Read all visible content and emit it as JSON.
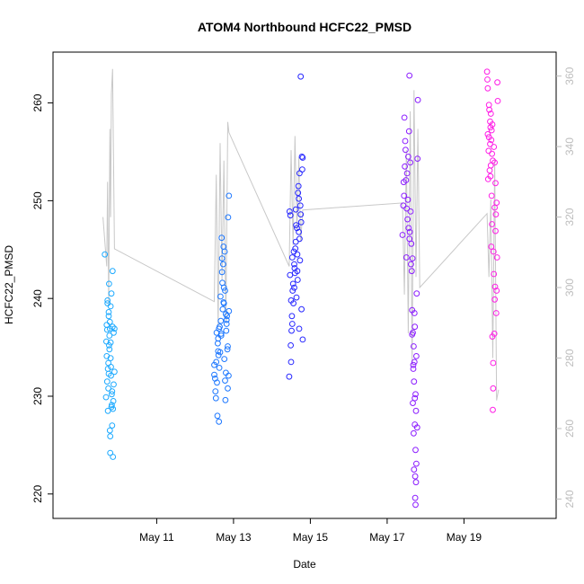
{
  "chart_data": {
    "type": "scatter",
    "title": "ATOM4 Northbound HCFC22_PMSD",
    "xlabel": "Date",
    "ylabel": "HCFC22_PMSD",
    "x_ticks": [
      "May 11",
      "May 13",
      "May 15",
      "May 17",
      "May 19"
    ],
    "x_tick_days": [
      11,
      13,
      15,
      17,
      19
    ],
    "xlim_days": [
      8.3,
      21.4
    ],
    "ylim": [
      217.5,
      265.2
    ],
    "y_ticks": [
      "220",
      "230",
      "240",
      "250",
      "260"
    ],
    "y_tick_values": [
      220,
      230,
      240,
      250,
      260
    ],
    "y2_ticks": [
      "240",
      "260",
      "280",
      "300",
      "320",
      "340",
      "360"
    ],
    "y2_tick_values": [
      240,
      260,
      280,
      300,
      320,
      340,
      360
    ],
    "y2lim": [
      234.5,
      366.8
    ],
    "grid": false,
    "marker": "open-circle",
    "colors": {
      "flight_1": "#1eaaff",
      "flight_2": "#1e78ff",
      "flight_3": "#2828ff",
      "flight_4": "#8c1eff",
      "flight_5": "#ff1ee6",
      "line": "#c8c8c8",
      "right_axis": "#bdbdbd"
    },
    "series": [
      {
        "color_key": "flight_1",
        "x": [
          9.65,
          9.72,
          9.75,
          9.78,
          9.85,
          9.88,
          9.7,
          9.82,
          9.8,
          9.76,
          9.74,
          9.9,
          9.68,
          9.73,
          9.84,
          9.79,
          9.86,
          9.71,
          9.77,
          9.83,
          9.69,
          9.81,
          9.87,
          9.75,
          9.78,
          9.72,
          9.8,
          9.85,
          9.74,
          9.82,
          9.77,
          9.7,
          9.88,
          9.73,
          9.79,
          9.83,
          9.76,
          9.81,
          9.84,
          9.71,
          9.9,
          9.8,
          9.75,
          9.86,
          9.78
        ],
        "y": [
          244.5,
          239.8,
          238.2,
          236.9,
          242.8,
          236.5,
          237.3,
          240.5,
          239.2,
          235.2,
          233.4,
          232.5,
          229.9,
          228.5,
          227,
          224.2,
          223.8,
          231.5,
          234.8,
          230.2,
          235.6,
          232.1,
          229.5,
          238.6,
          226.5,
          239.5,
          233.9,
          237.1,
          230.8,
          228.9,
          236.2,
          234.1,
          231.2,
          232.8,
          225.9,
          229.1,
          241.5,
          233,
          230.5,
          236.8,
          236.9,
          235.5,
          232.3,
          228.7,
          237.6
        ]
      },
      {
        "color_key": "flight_2",
        "x": [
          12.5,
          12.55,
          12.58,
          12.62,
          12.65,
          12.68,
          12.72,
          12.75,
          12.78,
          12.82,
          12.85,
          12.88,
          12.52,
          12.6,
          12.67,
          12.7,
          12.74,
          12.8,
          12.84,
          12.56,
          12.63,
          12.77,
          12.86,
          12.53,
          12.61,
          12.69,
          12.73,
          12.79,
          12.83,
          12.57,
          12.64,
          12.71,
          12.76,
          12.81,
          12.87,
          12.54,
          12.66,
          12.59,
          12.74,
          12.78,
          12.82,
          12.5,
          12.62,
          12.7,
          12.85,
          12.68,
          12.75,
          12.88,
          12.6,
          12.8
        ],
        "y": [
          232.2,
          233.5,
          228,
          227.4,
          234.5,
          236.2,
          238.9,
          239.5,
          240.8,
          237.8,
          235.1,
          250.5,
          231.8,
          235.9,
          237.7,
          242.7,
          245.3,
          238.4,
          234.8,
          236.5,
          232.9,
          244.8,
          248.3,
          230.5,
          234.2,
          246.2,
          243.5,
          229.6,
          238.2,
          231.4,
          237.1,
          241.6,
          233.8,
          236.7,
          232.1,
          229.8,
          240.2,
          235.4,
          239.6,
          231.6,
          237.4,
          233.2,
          236.9,
          244.1,
          230.8,
          236.4,
          241.1,
          238.7,
          234.6,
          232.4
        ]
      },
      {
        "color_key": "flight_3",
        "x": [
          14.45,
          14.5,
          14.52,
          14.55,
          14.58,
          14.62,
          14.65,
          14.68,
          14.72,
          14.75,
          14.78,
          14.8,
          14.48,
          14.53,
          14.6,
          14.64,
          14.7,
          14.74,
          14.77,
          14.51,
          14.57,
          14.63,
          14.67,
          14.73,
          14.79,
          14.46,
          14.56,
          14.61,
          14.66,
          14.71,
          14.76,
          14.49,
          14.54,
          14.59,
          14.69,
          14.72,
          14.8,
          14.47,
          14.62,
          14.75,
          14.53,
          14.66,
          14.58,
          14.7,
          14.5
        ],
        "y": [
          232,
          233.5,
          238.2,
          241.5,
          243.5,
          245.8,
          247.2,
          250.8,
          252.8,
          262.7,
          254.5,
          235.8,
          248.5,
          244.2,
          242.6,
          240.1,
          246.8,
          249.5,
          238.9,
          236.7,
          244.8,
          247.5,
          241.9,
          243.9,
          253.2,
          248.9,
          239.5,
          245.1,
          242.8,
          236.9,
          247.8,
          235.2,
          240.8,
          243.1,
          251.5,
          246.1,
          254.4,
          242.4,
          249.1,
          248.6,
          237.4,
          244.5,
          241.1,
          250.2,
          239.8
        ]
      },
      {
        "color_key": "flight_4",
        "x": [
          17.4,
          17.45,
          17.48,
          17.52,
          17.55,
          17.58,
          17.62,
          17.65,
          17.68,
          17.72,
          17.75,
          17.78,
          17.8,
          17.42,
          17.5,
          17.57,
          17.6,
          17.67,
          17.7,
          17.74,
          17.44,
          17.53,
          17.63,
          17.69,
          17.76,
          17.47,
          17.56,
          17.64,
          17.71,
          17.73,
          17.43,
          17.51,
          17.59,
          17.66,
          17.77,
          17.46,
          17.54,
          17.61,
          17.72,
          17.79,
          17.49,
          17.58,
          17.65,
          17.74,
          17.7,
          17.68,
          17.72,
          17.75,
          17.71,
          17.73,
          17.69,
          17.74,
          17.76,
          17.67
        ],
        "y": [
          246.5,
          258.5,
          255.2,
          252.8,
          254.5,
          262.8,
          243.5,
          238.8,
          233.2,
          229.8,
          228.5,
          226.8,
          260.3,
          249.5,
          244.2,
          257.1,
          253.9,
          236.5,
          231.5,
          224.5,
          250.5,
          248.1,
          245.6,
          235.1,
          223.1,
          256.1,
          247.2,
          242.8,
          238.5,
          221.8,
          251.9,
          249.2,
          246.8,
          244.1,
          240.5,
          253.5,
          250.1,
          248.9,
          237.1,
          254.3,
          252.1,
          246.1,
          236.3,
          218.9,
          222.5,
          232.8,
          227.1,
          221.2,
          233.5,
          219.6,
          226.2,
          230.2,
          234.1,
          229.3
        ]
      },
      {
        "color_key": "flight_5",
        "x": [
          19.6,
          19.62,
          19.65,
          19.68,
          19.7,
          19.72,
          19.75,
          19.78,
          19.8,
          19.82,
          19.85,
          19.88,
          19.63,
          19.67,
          19.71,
          19.74,
          19.77,
          19.81,
          19.84,
          19.61,
          19.66,
          19.69,
          19.73,
          19.76,
          19.79,
          19.83,
          19.86,
          19.64,
          19.7,
          19.75,
          19.8,
          19.87,
          19.62,
          19.68,
          19.72,
          19.78,
          19.82,
          19.65,
          19.74,
          19.85,
          19.71,
          19.76,
          19.69,
          19.8,
          19.73
        ],
        "y": [
          263.2,
          261.5,
          256.5,
          255.8,
          258.9,
          257.2,
          254.1,
          255.5,
          253.9,
          251.8,
          249.8,
          260.2,
          252.2,
          253.1,
          256.2,
          257.8,
          244.8,
          241.2,
          238.5,
          262.4,
          259.3,
          252.5,
          254.8,
          230.8,
          236.4,
          248.6,
          244.2,
          255.1,
          253.6,
          228.6,
          239.9,
          262.1,
          256.8,
          258.1,
          250.5,
          242.5,
          246.9,
          259.8,
          236.1,
          240.8,
          245.3,
          233.4,
          257.5,
          249.3,
          247.6
        ]
      }
    ],
    "line_path": {
      "color_key": "line",
      "x": [
        9.6,
        9.7,
        9.72,
        9.75,
        9.78,
        9.8,
        9.82,
        9.85,
        9.9,
        12.5,
        12.55,
        12.6,
        12.65,
        12.7,
        12.75,
        12.8,
        12.85,
        12.88,
        14.45,
        14.5,
        14.55,
        14.6,
        14.65,
        14.7,
        14.75,
        14.8,
        17.4,
        17.45,
        17.5,
        17.55,
        17.6,
        17.65,
        17.7,
        17.75,
        17.8,
        17.85,
        19.6,
        19.65,
        19.7,
        19.75,
        19.8,
        19.85,
        19.9
      ],
      "y2": [
        320,
        306,
        330,
        295,
        345,
        320,
        355,
        362,
        311,
        296,
        332,
        289,
        341,
        302,
        336,
        290,
        347,
        344,
        306,
        339,
        312,
        343,
        316,
        337,
        313,
        322,
        324,
        298,
        339,
        287,
        350,
        278,
        356,
        303,
        345,
        300,
        321,
        303,
        325,
        280,
        336,
        268,
        271
      ]
    }
  }
}
